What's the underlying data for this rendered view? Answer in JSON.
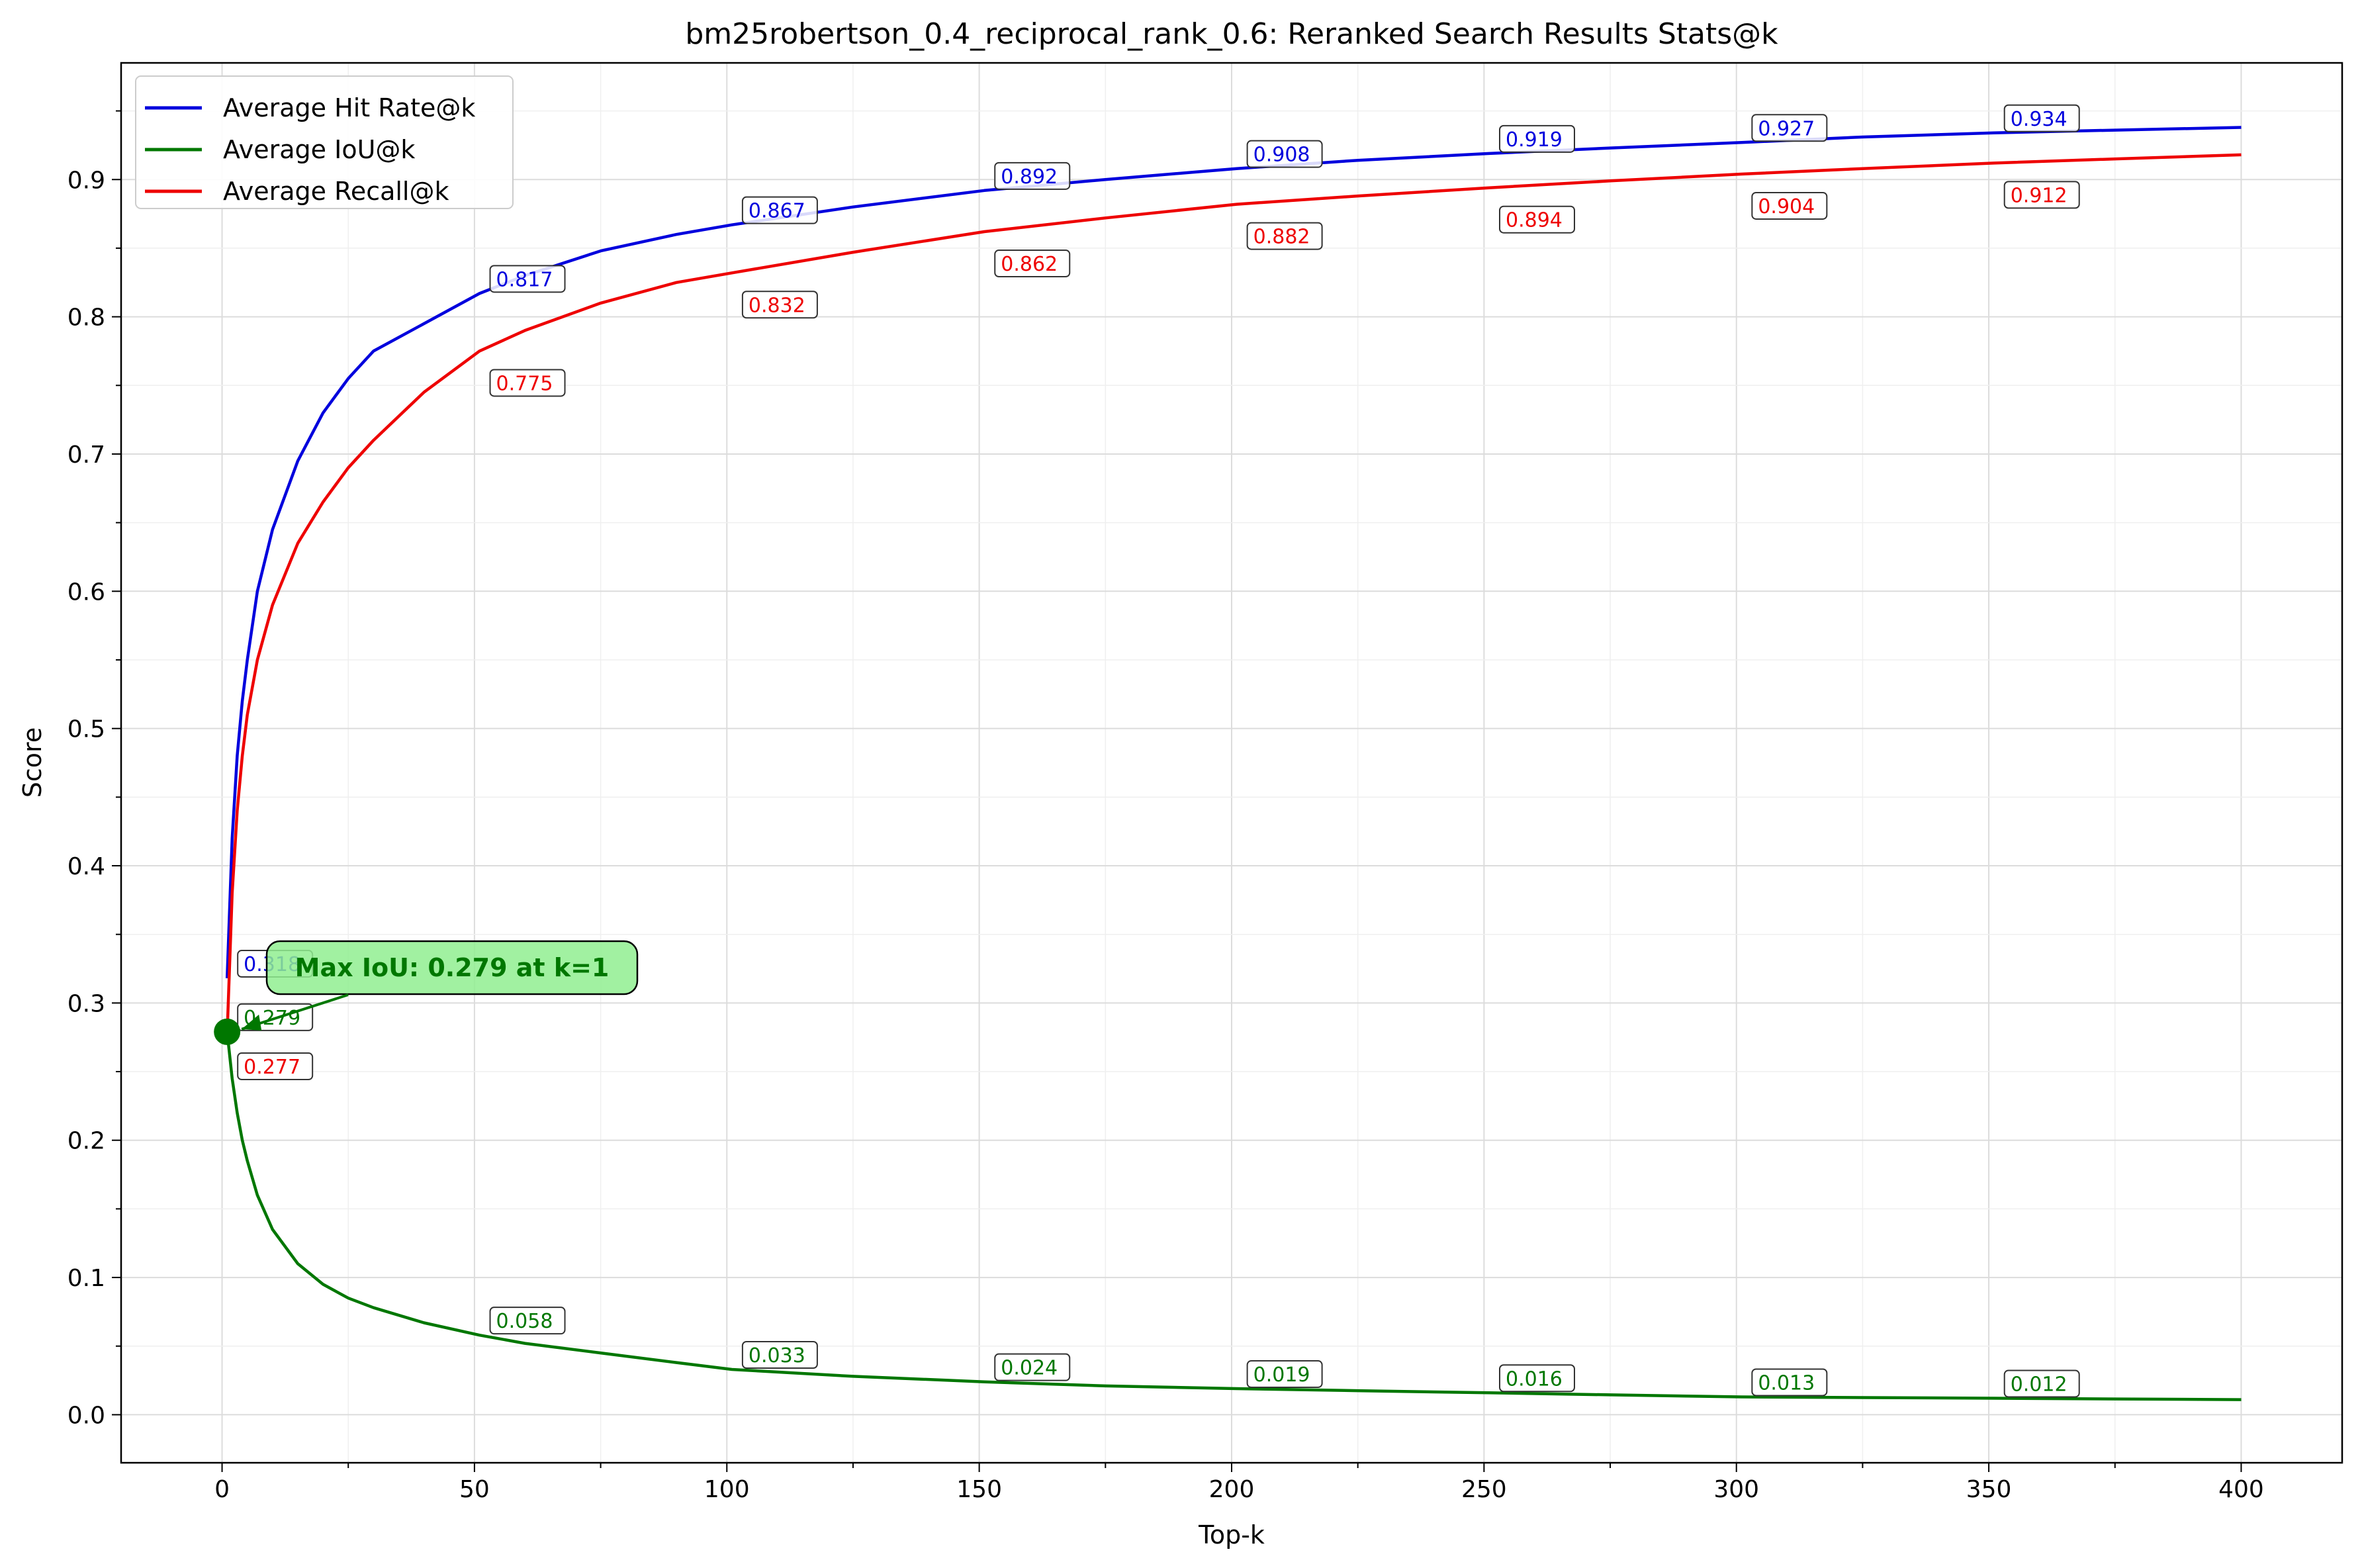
{
  "chart_data": {
    "type": "line",
    "title": "bm25robertson_0.4_reciprocal_rank_0.6: Reranked Search Results Stats@k",
    "xlabel": "Top-k",
    "ylabel": "Score",
    "xlim": [
      -20,
      420
    ],
    "ylim": [
      -0.035,
      0.985
    ],
    "xticks": [
      0,
      50,
      100,
      150,
      200,
      250,
      300,
      350,
      400
    ],
    "yticks": [
      0.0,
      0.1,
      0.2,
      0.3,
      0.4,
      0.5,
      0.6,
      0.7,
      0.8,
      0.9
    ],
    "grid": true,
    "legend_position": "top-left",
    "series": [
      {
        "name": "Average Hit Rate@k",
        "color": "#0000dd",
        "points": [
          [
            1,
            0.318
          ],
          [
            2,
            0.42
          ],
          [
            3,
            0.48
          ],
          [
            4,
            0.52
          ],
          [
            5,
            0.55
          ],
          [
            7,
            0.6
          ],
          [
            10,
            0.645
          ],
          [
            15,
            0.695
          ],
          [
            20,
            0.73
          ],
          [
            25,
            0.755
          ],
          [
            30,
            0.775
          ],
          [
            40,
            0.795
          ],
          [
            51,
            0.817
          ],
          [
            60,
            0.83
          ],
          [
            75,
            0.848
          ],
          [
            90,
            0.86
          ],
          [
            101,
            0.867
          ],
          [
            125,
            0.88
          ],
          [
            151,
            0.892
          ],
          [
            175,
            0.9
          ],
          [
            201,
            0.908
          ],
          [
            225,
            0.914
          ],
          [
            251,
            0.919
          ],
          [
            275,
            0.923
          ],
          [
            301,
            0.927
          ],
          [
            325,
            0.931
          ],
          [
            351,
            0.934
          ],
          [
            375,
            0.936
          ],
          [
            400,
            0.938
          ]
        ],
        "annotations": [
          {
            "k": 1,
            "label": "0.318"
          },
          {
            "k": 51,
            "label": "0.817"
          },
          {
            "k": 101,
            "label": "0.867"
          },
          {
            "k": 151,
            "label": "0.892"
          },
          {
            "k": 201,
            "label": "0.908"
          },
          {
            "k": 251,
            "label": "0.919"
          },
          {
            "k": 301,
            "label": "0.927"
          },
          {
            "k": 351,
            "label": "0.934"
          }
        ]
      },
      {
        "name": "Average IoU@k",
        "color": "#007700",
        "points": [
          [
            1,
            0.279
          ],
          [
            2,
            0.245
          ],
          [
            3,
            0.22
          ],
          [
            4,
            0.2
          ],
          [
            5,
            0.185
          ],
          [
            7,
            0.16
          ],
          [
            10,
            0.135
          ],
          [
            15,
            0.11
          ],
          [
            20,
            0.095
          ],
          [
            25,
            0.085
          ],
          [
            30,
            0.078
          ],
          [
            40,
            0.067
          ],
          [
            51,
            0.058
          ],
          [
            60,
            0.052
          ],
          [
            75,
            0.045
          ],
          [
            90,
            0.038
          ],
          [
            101,
            0.033
          ],
          [
            125,
            0.028
          ],
          [
            151,
            0.024
          ],
          [
            175,
            0.021
          ],
          [
            201,
            0.019
          ],
          [
            225,
            0.0175
          ],
          [
            251,
            0.016
          ],
          [
            275,
            0.0145
          ],
          [
            301,
            0.013
          ],
          [
            325,
            0.0125
          ],
          [
            351,
            0.012
          ],
          [
            375,
            0.0115
          ],
          [
            400,
            0.011
          ]
        ],
        "annotations": [
          {
            "k": 1,
            "label": "0.279"
          },
          {
            "k": 51,
            "label": "0.058"
          },
          {
            "k": 101,
            "label": "0.033"
          },
          {
            "k": 151,
            "label": "0.024"
          },
          {
            "k": 201,
            "label": "0.019"
          },
          {
            "k": 251,
            "label": "0.016"
          },
          {
            "k": 301,
            "label": "0.013"
          },
          {
            "k": 351,
            "label": "0.012"
          }
        ]
      },
      {
        "name": "Average Recall@k",
        "color": "#ee0000",
        "points": [
          [
            1,
            0.277
          ],
          [
            2,
            0.38
          ],
          [
            3,
            0.44
          ],
          [
            4,
            0.48
          ],
          [
            5,
            0.51
          ],
          [
            7,
            0.55
          ],
          [
            10,
            0.59
          ],
          [
            15,
            0.635
          ],
          [
            20,
            0.665
          ],
          [
            25,
            0.69
          ],
          [
            30,
            0.71
          ],
          [
            40,
            0.745
          ],
          [
            51,
            0.775
          ],
          [
            60,
            0.79
          ],
          [
            75,
            0.81
          ],
          [
            90,
            0.825
          ],
          [
            101,
            0.832
          ],
          [
            125,
            0.847
          ],
          [
            151,
            0.862
          ],
          [
            175,
            0.872
          ],
          [
            201,
            0.882
          ],
          [
            225,
            0.888
          ],
          [
            251,
            0.894
          ],
          [
            275,
            0.899
          ],
          [
            301,
            0.904
          ],
          [
            325,
            0.908
          ],
          [
            351,
            0.912
          ],
          [
            375,
            0.915
          ],
          [
            400,
            0.918
          ]
        ],
        "annotations": [
          {
            "k": 1,
            "label": "0.277"
          },
          {
            "k": 51,
            "label": "0.775"
          },
          {
            "k": 101,
            "label": "0.832"
          },
          {
            "k": 151,
            "label": "0.862"
          },
          {
            "k": 201,
            "label": "0.882"
          },
          {
            "k": 251,
            "label": "0.894"
          },
          {
            "k": 301,
            "label": "0.904"
          },
          {
            "k": 351,
            "label": "0.912"
          }
        ]
      }
    ],
    "highlight": {
      "k": 1,
      "value": 0.279,
      "label": "Max IoU: 0.279 at k=1",
      "color": "#007700",
      "box_color": "#90ee90"
    }
  }
}
